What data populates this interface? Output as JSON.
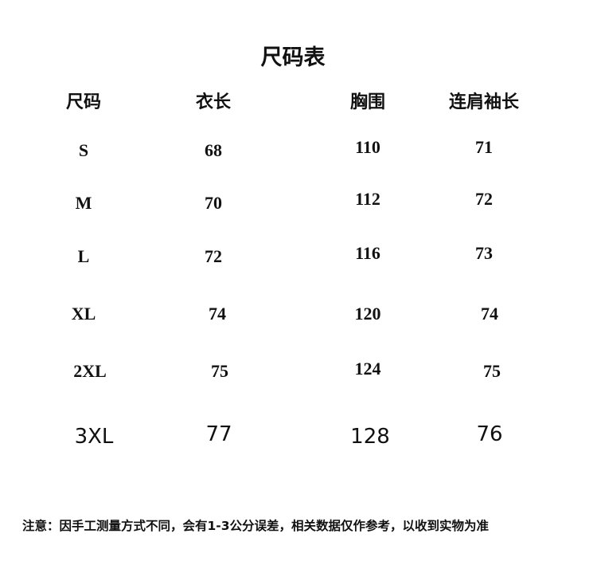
{
  "title": "尺码表",
  "headers": [
    "尺码",
    "衣长",
    "胸围",
    "连肩袖长"
  ],
  "rows": [
    [
      "S",
      "68",
      "110",
      "71"
    ],
    [
      "M",
      "70",
      "112",
      "72"
    ],
    [
      "L",
      "72",
      "116",
      "73"
    ],
    [
      "XL",
      "74",
      "120",
      "74"
    ],
    [
      "2XL",
      "75",
      "124",
      "75"
    ],
    [
      "3XL",
      "77",
      "128",
      "76"
    ]
  ],
  "note": "注意：因手工测量方式不同，会有1-3公分误差，相关数据仅作参考，以收到实物为准"
}
